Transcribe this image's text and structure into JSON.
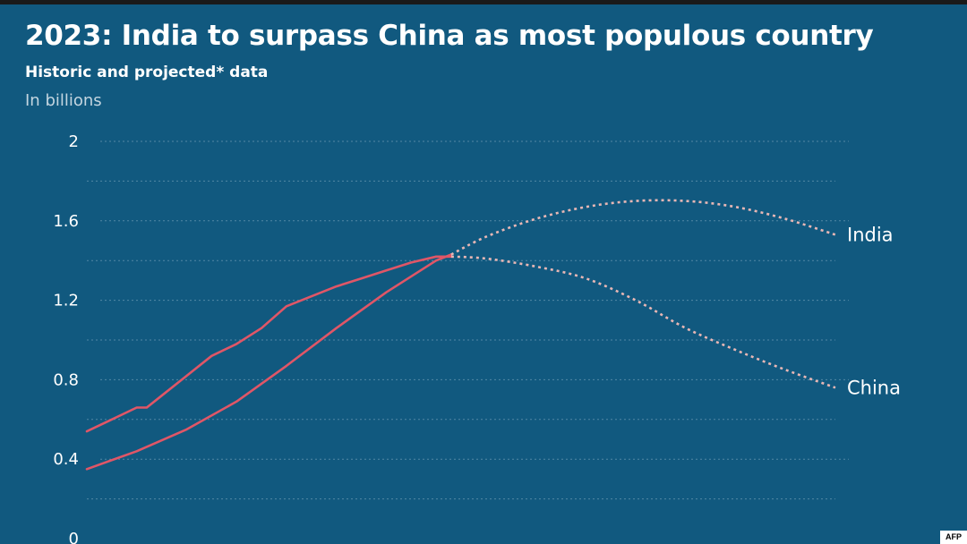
{
  "header": {
    "title": "2023: India to surpass China as most populous country",
    "subtitle": "Historic and projected* data",
    "unit_label": "In billions"
  },
  "credit": "AFP",
  "colors": {
    "background": "#11597f",
    "historic_line": "#e05667",
    "projected_line": "#e8b7b5",
    "grid": "#7fa6bf",
    "text": "#ffffff"
  },
  "chart_data": {
    "type": "line",
    "title": "2023: India to surpass China as most populous country",
    "subtitle": "Historic and projected* data",
    "ylabel": "In billions",
    "ylim": [
      0,
      2
    ],
    "yticks": [
      0,
      0.4,
      0.8,
      1.2,
      1.6,
      2
    ],
    "ytick_labels": [
      "0",
      "0.4",
      "0.8",
      "1.2",
      "1.6",
      "2"
    ],
    "xlim": [
      1950,
      2100
    ],
    "grid": true,
    "legend": "direct labels at line ends (right)",
    "series": [
      {
        "name": "India",
        "historic": {
          "x": [
            1950,
            1960,
            1970,
            1980,
            1990,
            2000,
            2010,
            2020,
            2023
          ],
          "y": [
            0.35,
            0.44,
            0.55,
            0.69,
            0.87,
            1.06,
            1.24,
            1.4,
            1.43
          ]
        },
        "projected": {
          "x": [
            2023,
            2030,
            2040,
            2050,
            2060,
            2070,
            2080,
            2090,
            2100
          ],
          "y": [
            1.43,
            1.52,
            1.61,
            1.67,
            1.7,
            1.7,
            1.67,
            1.61,
            1.53
          ]
        }
      },
      {
        "name": "China",
        "historic": {
          "x": [
            1950,
            1955,
            1960,
            1962,
            1965,
            1970,
            1975,
            1980,
            1985,
            1990,
            1995,
            2000,
            2005,
            2010,
            2015,
            2020,
            2023
          ],
          "y": [
            0.54,
            0.6,
            0.66,
            0.66,
            0.72,
            0.82,
            0.92,
            0.98,
            1.06,
            1.17,
            1.22,
            1.27,
            1.31,
            1.35,
            1.39,
            1.42,
            1.42
          ]
        },
        "projected": {
          "x": [
            2023,
            2030,
            2040,
            2050,
            2060,
            2070,
            2080,
            2090,
            2100
          ],
          "y": [
            1.42,
            1.41,
            1.37,
            1.31,
            1.2,
            1.06,
            0.95,
            0.85,
            0.76
          ]
        }
      }
    ]
  }
}
